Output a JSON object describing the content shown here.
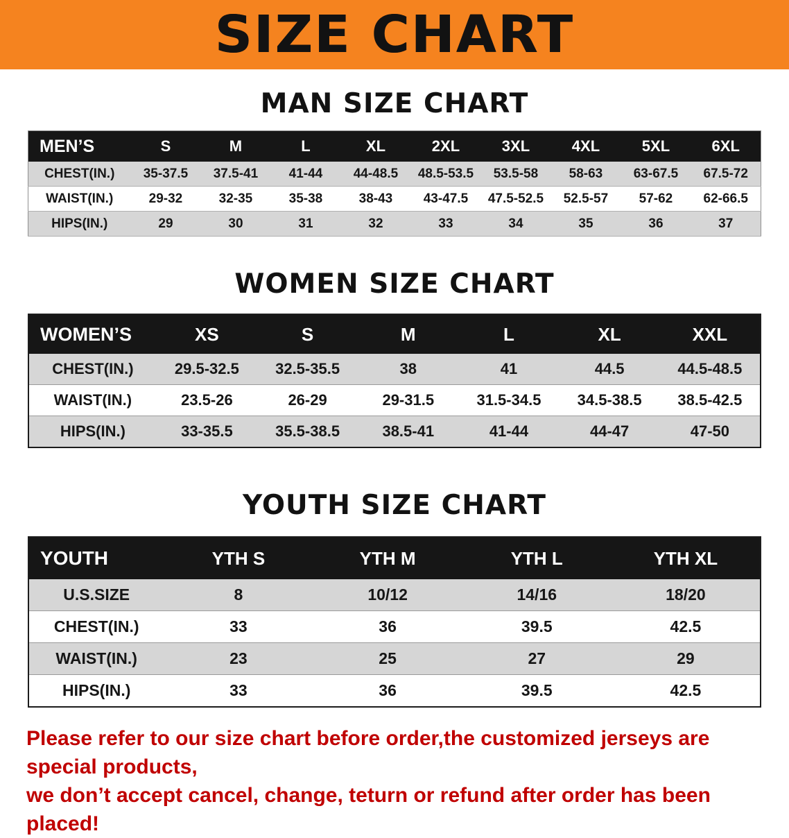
{
  "banner": {
    "title": "SIZE CHART",
    "bg_color": "#f5831f"
  },
  "sections": {
    "men": {
      "heading": "MAN SIZE CHART"
    },
    "women": {
      "heading": "WOMEN SIZE CHART"
    },
    "youth": {
      "heading": "YOUTH SIZE CHART"
    }
  },
  "tables": {
    "men": {
      "corner": "MEN’S",
      "columns": [
        "S",
        "M",
        "L",
        "XL",
        "2XL",
        "3XL",
        "4XL",
        "5XL",
        "6XL"
      ],
      "rows": [
        {
          "label": "CHEST(IN.)",
          "values": [
            "35-37.5",
            "37.5-41",
            "41-44",
            "44-48.5",
            "48.5-53.5",
            "53.5-58",
            "58-63",
            "63-67.5",
            "67.5-72"
          ]
        },
        {
          "label": "WAIST(IN.)",
          "values": [
            "29-32",
            "32-35",
            "35-38",
            "38-43",
            "43-47.5",
            "47.5-52.5",
            "52.5-57",
            "57-62",
            "62-66.5"
          ]
        },
        {
          "label": "HIPS(IN.)",
          "values": [
            "29",
            "30",
            "31",
            "32",
            "33",
            "34",
            "35",
            "36",
            "37"
          ]
        }
      ]
    },
    "women": {
      "corner": "WOMEN’S",
      "columns": [
        "XS",
        "S",
        "M",
        "L",
        "XL",
        "XXL"
      ],
      "rows": [
        {
          "label": "CHEST(IN.)",
          "values": [
            "29.5-32.5",
            "32.5-35.5",
            "38",
            "41",
            "44.5",
            "44.5-48.5"
          ]
        },
        {
          "label": "WAIST(IN.)",
          "values": [
            "23.5-26",
            "26-29",
            "29-31.5",
            "31.5-34.5",
            "34.5-38.5",
            "38.5-42.5"
          ]
        },
        {
          "label": "HIPS(IN.)",
          "values": [
            "33-35.5",
            "35.5-38.5",
            "38.5-41",
            "41-44",
            "44-47",
            "47-50"
          ]
        }
      ]
    },
    "youth": {
      "corner": "YOUTH",
      "columns": [
        "YTH S",
        "YTH M",
        "YTH L",
        "YTH XL"
      ],
      "rows": [
        {
          "label": "U.S.SIZE",
          "values": [
            "8",
            "10/12",
            "14/16",
            "18/20"
          ]
        },
        {
          "label": "CHEST(IN.)",
          "values": [
            "33",
            "36",
            "39.5",
            "42.5"
          ]
        },
        {
          "label": "WAIST(IN.)",
          "values": [
            "23",
            "25",
            "27",
            "29"
          ]
        },
        {
          "label": "HIPS(IN.)",
          "values": [
            "33",
            "36",
            "39.5",
            "42.5"
          ]
        }
      ]
    }
  },
  "note": {
    "line1": "Please refer to our size chart before order,the customized jerseys are special products,",
    "line2": "we don’t accept cancel, change, teturn or refund after order has been placed!",
    "color": "#c00000"
  }
}
